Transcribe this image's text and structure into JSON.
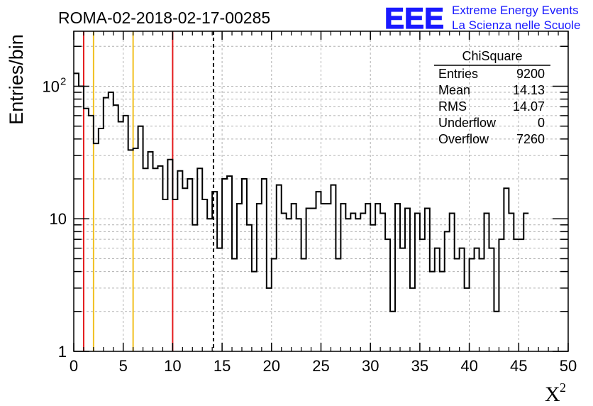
{
  "header": {
    "title": "ROMA-02-2018-02-17-00285",
    "ylabel": "Entries/bin",
    "xlabel_base": "X",
    "xlabel_sup": "2"
  },
  "logo": {
    "mark": "EEE",
    "line1": "Extreme Energy Events",
    "line2": "La Scienza nelle Scuole",
    "color": "#1a1aff"
  },
  "stats": {
    "title": "ChiSquare",
    "rows": [
      {
        "label": "Entries",
        "value": "9200"
      },
      {
        "label": "Mean",
        "value": "14.13"
      },
      {
        "label": "RMS",
        "value": "14.07"
      },
      {
        "label": "Underflow",
        "value": "0"
      },
      {
        "label": "Overflow",
        "value": "7260"
      }
    ]
  },
  "chart_data": {
    "type": "histogram",
    "title": "ROMA-02-2018-02-17-00285",
    "xlabel": "X²",
    "ylabel": "Entries/bin",
    "xlim": [
      0,
      50
    ],
    "ylim": [
      1,
      260
    ],
    "yscale": "log",
    "grid": true,
    "bin_width": 0.5,
    "x_ticks": [
      "0",
      "5",
      "10",
      "15",
      "20",
      "25",
      "30",
      "35",
      "40",
      "45",
      "50"
    ],
    "y_ticks": [
      {
        "value": 1,
        "label": "1"
      },
      {
        "value": 10,
        "label": "10"
      },
      {
        "value": 100,
        "label": "10",
        "sup": "2"
      }
    ],
    "values": [
      125,
      100,
      68,
      60,
      37,
      48,
      82,
      90,
      72,
      54,
      60,
      33,
      34,
      50,
      24,
      32,
      24,
      25,
      14,
      28,
      14,
      23,
      17,
      20,
      9,
      24,
      14,
      10,
      16,
      6,
      20,
      21,
      5,
      13,
      20,
      9,
      4,
      13,
      20,
      3,
      5,
      18,
      11,
      10,
      13,
      10,
      5,
      12,
      12,
      16,
      13,
      13,
      18,
      5,
      13,
      10,
      11,
      10,
      11,
      13,
      9,
      13,
      11,
      7,
      2,
      13,
      6,
      12,
      3,
      11,
      7,
      12,
      4,
      6,
      4,
      8,
      11,
      5,
      6,
      3,
      5,
      6,
      5,
      11,
      6,
      2,
      7,
      17,
      11,
      7,
      7,
      11
    ],
    "reference_lines": [
      {
        "x": 1,
        "color": "#e41a1c",
        "style": "solid"
      },
      {
        "x": 2,
        "color": "#f0c020",
        "style": "solid"
      },
      {
        "x": 6,
        "color": "#f0c020",
        "style": "solid"
      },
      {
        "x": 10,
        "color": "#e41a1c",
        "style": "solid"
      },
      {
        "x": 14.13,
        "color": "#000000",
        "style": "dashed"
      }
    ]
  }
}
